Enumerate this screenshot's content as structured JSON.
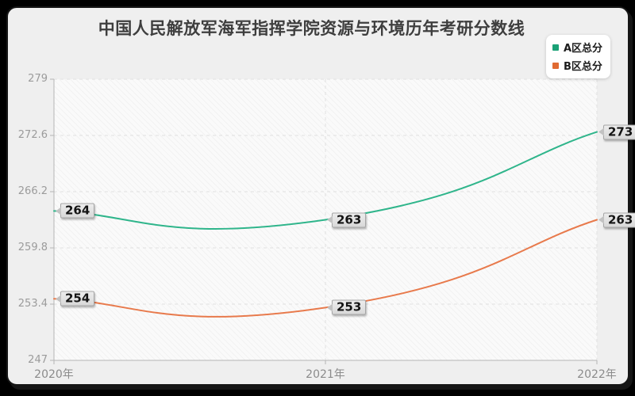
{
  "page": {
    "title": "中国人民解放军海军指挥学院资源与环境历年考研分数线"
  },
  "legend": {
    "items": [
      {
        "label": "A区总分",
        "color": "#1aa176"
      },
      {
        "label": "B区总分",
        "color": "#e06a32"
      }
    ]
  },
  "chart_data": {
    "type": "line",
    "title": "中国人民解放军海军指挥学院资源与环境历年考研分数线",
    "categories": [
      "2020年",
      "2021年",
      "2022年"
    ],
    "series": [
      {
        "name": "A区总分",
        "color": "#2fb58b",
        "values": [
          264,
          263,
          273
        ]
      },
      {
        "name": "B区总分",
        "color": "#e87a4c",
        "values": [
          254,
          253,
          263
        ]
      }
    ],
    "ylim": [
      247,
      279
    ],
    "yticks": [
      279,
      272.6,
      266.2,
      259.8,
      253.4,
      247
    ],
    "smooth": true,
    "grid": "dashed",
    "legend_position": "top-right",
    "data_labels": true
  }
}
